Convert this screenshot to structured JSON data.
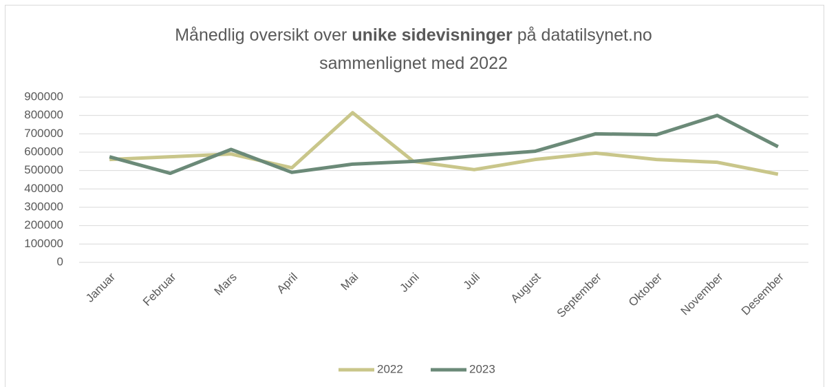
{
  "chart_data": {
    "type": "line",
    "title": [
      {
        "text": "Månedlig oversikt over",
        "bold": false,
        "line": 0
      },
      {
        "text": "unike sidevisninger",
        "bold": true,
        "line": 0
      },
      {
        "text": "på datatilsynet.no",
        "bold": false,
        "line": 0
      },
      {
        "text": "sammenlignet med 2022",
        "bold": false,
        "line": 1
      }
    ],
    "categories": [
      "Januar",
      "Februar",
      "Mars",
      "April",
      "Mai",
      "Juni",
      "Juli",
      "August",
      "September",
      "Oktober",
      "November",
      "Desember"
    ],
    "series": [
      {
        "name": "2022",
        "color": "#c9c68a",
        "values": [
          560000,
          575000,
          590000,
          515000,
          815000,
          550000,
          505000,
          560000,
          595000,
          560000,
          545000,
          480000
        ]
      },
      {
        "name": "2023",
        "color": "#6b8a78",
        "values": [
          575000,
          485000,
          615000,
          490000,
          535000,
          550000,
          580000,
          605000,
          700000,
          695000,
          800000,
          630000
        ]
      }
    ],
    "ylim": [
      0,
      900000
    ],
    "yticks": [
      0,
      100000,
      200000,
      300000,
      400000,
      500000,
      600000,
      700000,
      800000,
      900000
    ],
    "grid": true,
    "legend": "bottom"
  }
}
